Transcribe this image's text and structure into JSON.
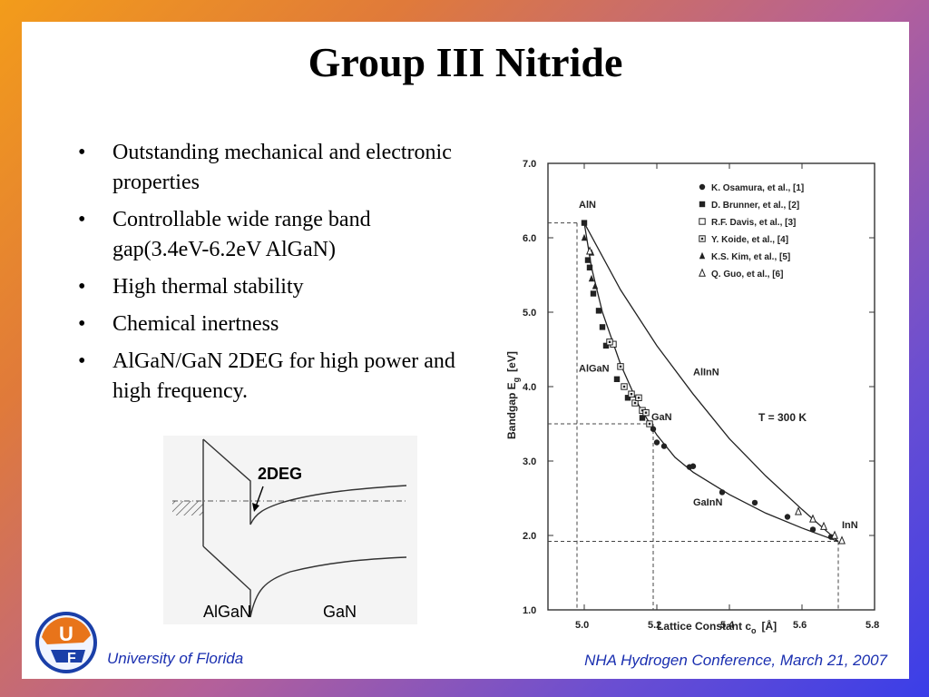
{
  "slide": {
    "title": "Group III Nitride",
    "bullets": [
      "Outstanding mechanical and electronic properties",
      "Controllable wide range band gap(3.4eV-6.2eV AlGaN)",
      "High thermal stability",
      "Chemical inertness",
      "AlGaN/GaN 2DEG for high power and high frequency."
    ],
    "footer_left": "University of Florida",
    "footer_right": "NHA Hydrogen Conference, March 21, 2007"
  },
  "band_diagram": {
    "label_2deg": "2DEG",
    "label_left": "AlGaN",
    "label_right": "GaN"
  },
  "chart_data": {
    "type": "scatter",
    "xlabel": "Lattice Constant c",
    "xlabel_sub": "o",
    "xlabel_unit": "[Å]",
    "ylabel": "Bandgap E",
    "ylabel_sub": "g",
    "ylabel_unit": "[eV]",
    "xlim": [
      4.9,
      5.8
    ],
    "ylim": [
      1.0,
      7.0
    ],
    "xticks": [
      "5.0",
      "5.2",
      "5.4",
      "5.6",
      "5.8"
    ],
    "xtick_values": [
      5.0,
      5.2,
      5.4,
      5.6,
      5.8
    ],
    "yticks": [
      "1.0",
      "2.0",
      "3.0",
      "4.0",
      "5.0",
      "6.0",
      "7.0"
    ],
    "ytick_values": [
      1.0,
      2.0,
      3.0,
      4.0,
      5.0,
      6.0,
      7.0
    ],
    "temperature_label": "T = 300 K",
    "annotations": [
      {
        "text": "AlN",
        "x": 4.985,
        "y": 6.4
      },
      {
        "text": "AlGaN",
        "x": 4.985,
        "y": 4.2
      },
      {
        "text": "AlInN",
        "x": 5.3,
        "y": 4.15
      },
      {
        "text": "GaN",
        "x": 5.185,
        "y": 3.55
      },
      {
        "text": "GaInN",
        "x": 5.3,
        "y": 2.4
      },
      {
        "text": "InN",
        "x": 5.71,
        "y": 2.1
      }
    ],
    "series": [
      {
        "name": "K. Osamura, et al., [1]",
        "marker": "circle-filled",
        "x": [
          5.19,
          5.2,
          5.22,
          5.29,
          5.3,
          5.38,
          5.47,
          5.56,
          5.63,
          5.68
        ],
        "y": [
          3.43,
          3.25,
          3.2,
          2.92,
          2.93,
          2.58,
          2.44,
          2.25,
          2.08,
          1.98
        ]
      },
      {
        "name": "D. Brunner, et al., [2]",
        "marker": "square-filled",
        "x": [
          5.0,
          5.01,
          5.015,
          5.025,
          5.04,
          5.05,
          5.06,
          5.09,
          5.12,
          5.16
        ],
        "y": [
          6.2,
          5.7,
          5.6,
          5.25,
          5.02,
          4.8,
          4.55,
          4.1,
          3.85,
          3.58
        ]
      },
      {
        "name": "R.F. Davis, et al., [3]",
        "marker": "square-open",
        "x": [
          5.08
        ],
        "y": [
          4.57
        ]
      },
      {
        "name": "Y. Koide, et al., [4]",
        "marker": "square-dot",
        "x": [
          5.07,
          5.1,
          5.11,
          5.13,
          5.14,
          5.15,
          5.16,
          5.17,
          5.18
        ],
        "y": [
          4.6,
          4.27,
          4.0,
          3.9,
          3.78,
          3.85,
          3.68,
          3.65,
          3.5
        ]
      },
      {
        "name": "K.S. Kim, et al., [5]",
        "marker": "triangle-filled",
        "x": [
          5.0,
          5.02,
          5.02,
          5.03
        ],
        "y": [
          6.0,
          5.8,
          5.45,
          5.35
        ]
      },
      {
        "name": "Q. Guo, et al., [6]",
        "marker": "triangle-open",
        "x": [
          5.015,
          5.59,
          5.63,
          5.66,
          5.69,
          5.71
        ],
        "y": [
          5.82,
          2.32,
          2.22,
          2.12,
          2.0,
          1.93
        ]
      }
    ],
    "curves": [
      {
        "name": "AlGaN-GaInN",
        "x": [
          5.0,
          5.02,
          5.05,
          5.1,
          5.15,
          5.2,
          5.25,
          5.3,
          5.4,
          5.5,
          5.6,
          5.7
        ],
        "y": [
          6.2,
          5.6,
          5.0,
          4.3,
          3.75,
          3.35,
          3.05,
          2.85,
          2.55,
          2.3,
          2.1,
          1.92
        ]
      },
      {
        "name": "AlInN",
        "x": [
          5.0,
          5.1,
          5.2,
          5.3,
          5.4,
          5.5,
          5.6,
          5.7
        ],
        "y": [
          6.2,
          5.3,
          4.55,
          3.9,
          3.3,
          2.8,
          2.35,
          1.92
        ]
      }
    ],
    "reference_lines": [
      {
        "x": 4.98,
        "y": 6.2
      },
      {
        "x": 5.19,
        "y": 3.5
      },
      {
        "x": 5.7,
        "y": 1.92
      }
    ]
  }
}
